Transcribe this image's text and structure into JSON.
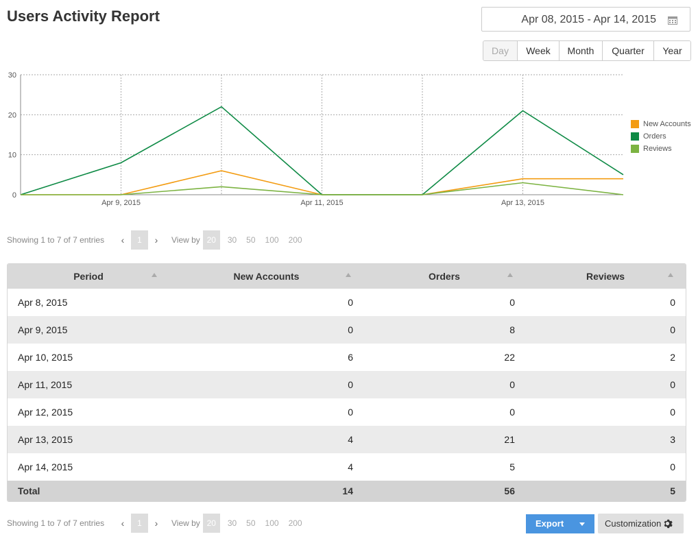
{
  "page": {
    "title": "Users Activity Report"
  },
  "date_range": {
    "value": "Apr 08, 2015 - Apr 14, 2015",
    "icon": "calendar-icon"
  },
  "period_buttons": [
    "Day",
    "Week",
    "Month",
    "Quarter",
    "Year"
  ],
  "active_period": "Day",
  "chart_data": {
    "type": "line",
    "x": [
      "Apr 8, 2015",
      "Apr 9, 2015",
      "Apr 10, 2015",
      "Apr 11, 2015",
      "Apr 12, 2015",
      "Apr 13, 2015",
      "Apr 14, 2015"
    ],
    "x_tick_labels": [
      "Apr 9, 2015",
      "Apr 11, 2015",
      "Apr 13, 2015"
    ],
    "series": [
      {
        "name": "New Accounts",
        "color": "#f39c12",
        "values": [
          0,
          0,
          6,
          0,
          0,
          4,
          4
        ]
      },
      {
        "name": "Orders",
        "color": "#0e8a45",
        "values": [
          0,
          8,
          22,
          0,
          0,
          21,
          5
        ]
      },
      {
        "name": "Reviews",
        "color": "#7cb342",
        "values": [
          0,
          0,
          2,
          0,
          0,
          3,
          0
        ]
      }
    ],
    "ylim": [
      0,
      30
    ],
    "y_ticks": [
      0,
      10,
      20,
      30
    ],
    "grid": true,
    "legend": "right"
  },
  "pager": {
    "showing": "Showing 1 to 7 of 7 entries",
    "prev": "‹",
    "next": "›",
    "current_page": "1",
    "view_by_label": "View by",
    "view_by_options": [
      "20",
      "30",
      "50",
      "100",
      "200"
    ],
    "view_by_active": "20"
  },
  "table": {
    "headers": [
      "Period",
      "New Accounts",
      "Orders",
      "Reviews"
    ],
    "rows": [
      [
        "Apr 8, 2015",
        "0",
        "0",
        "0"
      ],
      [
        "Apr 9, 2015",
        "0",
        "8",
        "0"
      ],
      [
        "Apr 10, 2015",
        "6",
        "22",
        "2"
      ],
      [
        "Apr 11, 2015",
        "0",
        "0",
        "0"
      ],
      [
        "Apr 12, 2015",
        "0",
        "0",
        "0"
      ],
      [
        "Apr 13, 2015",
        "4",
        "21",
        "3"
      ],
      [
        "Apr 14, 2015",
        "4",
        "5",
        "0"
      ]
    ],
    "total": [
      "Total",
      "14",
      "56",
      "5"
    ]
  },
  "actions": {
    "export": "Export",
    "customization": "Customization"
  }
}
